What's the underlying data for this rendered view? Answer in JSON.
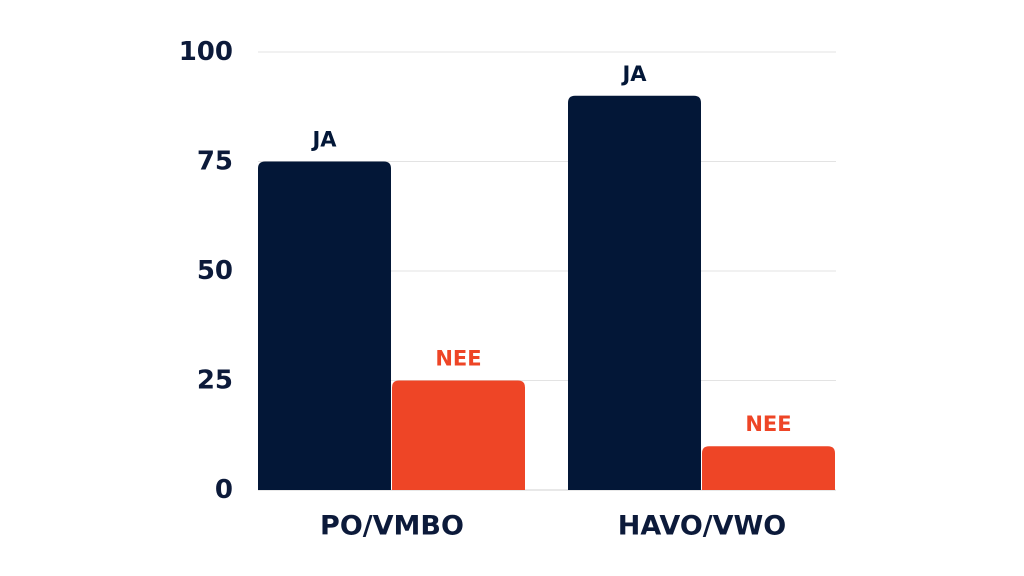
{
  "colors": {
    "ja": "#031737",
    "nee": "#ee4526",
    "grid": "#e3e3e3",
    "axis": "#0c1a3a"
  },
  "chart_data": {
    "type": "bar",
    "categories": [
      "PO/VMBO",
      "HAVO/VWO"
    ],
    "series": [
      {
        "name": "JA",
        "values": [
          75,
          90
        ],
        "color": "#031737"
      },
      {
        "name": "NEE",
        "values": [
          25,
          10
        ],
        "color": "#ee4526"
      }
    ],
    "data_labels": [
      [
        "JA",
        "JA"
      ],
      [
        "NEE",
        "NEE"
      ]
    ],
    "yticks": [
      "0",
      "25",
      "50",
      "75",
      "100"
    ],
    "ylim": [
      0,
      100
    ],
    "grid": true,
    "title": "",
    "xlabel": "",
    "ylabel": ""
  }
}
